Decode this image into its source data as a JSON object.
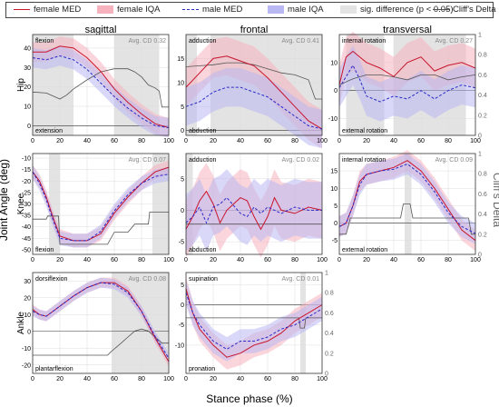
{
  "colors": {
    "female": "#c8142d",
    "female_band": "#f6b3bd",
    "male": "#2929c8",
    "male_band": "#b9b8f2",
    "sig": "#e3e3e3",
    "cliff": "#555555"
  },
  "legend": [
    {
      "label": "female MED",
      "kind": "line-female"
    },
    {
      "label": "female IQA",
      "kind": "band-female"
    },
    {
      "label": "male MED",
      "kind": "line-male"
    },
    {
      "label": "male IQA",
      "kind": "band-male"
    },
    {
      "label": "sig. difference (p < 0.05)",
      "kind": "band-sig"
    },
    {
      "label": "Cliff's Delta",
      "kind": "line-cliff"
    }
  ],
  "figure": {
    "columns": [
      "sagittal",
      "frontal",
      "transversal"
    ],
    "rows": [
      "Hip",
      "Knee",
      "Ankle"
    ],
    "ylabel": "Joint Angle (deg)",
    "xlabel": "Stance phase (%)",
    "y2label": "Cliff's Delta"
  },
  "chart_data": [
    {
      "type": "line",
      "row": 0,
      "col": 0,
      "x_ticks": [
        0,
        20,
        40,
        60,
        80,
        100
      ],
      "y_ticks": [
        0,
        10,
        20,
        30,
        40
      ],
      "ylim": [
        -5,
        47
      ],
      "y2_ticks": [
        0,
        0.2,
        0.4,
        0.6,
        0.8,
        1
      ],
      "avg_cd": "Avg. CD 0.32",
      "label_top": "flexion",
      "label_bottom": "extension",
      "female": {
        "x": [
          0,
          10,
          20,
          30,
          40,
          50,
          60,
          70,
          80,
          90,
          100
        ],
        "y": [
          38,
          38,
          41,
          40,
          35,
          28,
          19,
          12,
          6,
          1,
          -1
        ]
      },
      "male": {
        "x": [
          0,
          10,
          20,
          30,
          40,
          50,
          60,
          70,
          80,
          90,
          100
        ],
        "y": [
          35,
          34,
          36,
          34,
          29,
          22,
          15,
          9,
          4,
          0,
          -1
        ]
      },
      "band_width": 5,
      "sig": [
        [
          0,
          30
        ],
        [
          60,
          93
        ]
      ],
      "cliff": {
        "x": [
          0,
          10,
          20,
          25,
          30,
          40,
          50,
          60,
          70,
          75,
          80,
          85,
          90,
          93,
          95,
          100
        ],
        "y": [
          0.43,
          0.42,
          0.36,
          0.4,
          0.46,
          0.55,
          0.63,
          0.66,
          0.66,
          0.63,
          0.58,
          0.5,
          0.47,
          0.44,
          0.28,
          0.28
        ]
      }
    },
    {
      "type": "line",
      "row": 0,
      "col": 1,
      "x_ticks": [
        0,
        20,
        40,
        60,
        80,
        100
      ],
      "y_ticks": [
        0,
        5,
        10,
        15
      ],
      "ylim": [
        -1,
        20
      ],
      "y2_ticks": [
        0,
        0.2,
        0.4,
        0.6,
        0.8,
        1
      ],
      "avg_cd": "Avg. CD 0.41",
      "label_top": "adduction",
      "label_bottom": "abduction",
      "female": {
        "x": [
          0,
          10,
          20,
          30,
          40,
          50,
          60,
          70,
          80,
          90,
          100
        ],
        "y": [
          9,
          12,
          15,
          15.5,
          14.5,
          13.5,
          11,
          8,
          5,
          2,
          0.3
        ]
      },
      "male": {
        "x": [
          0,
          10,
          20,
          30,
          40,
          50,
          60,
          70,
          80,
          90,
          100
        ],
        "y": [
          5,
          6,
          8,
          9,
          9,
          8,
          7,
          5,
          3,
          1,
          0.3
        ]
      },
      "band_width": 4,
      "sig": [
        [
          0,
          8
        ],
        [
          18,
          100
        ]
      ],
      "cliff": {
        "x": [
          0,
          10,
          20,
          30,
          40,
          50,
          60,
          70,
          80,
          90,
          95,
          100
        ],
        "y": [
          0.68,
          0.69,
          0.7,
          0.72,
          0.72,
          0.7,
          0.66,
          0.62,
          0.6,
          0.55,
          0.36,
          0.36
        ]
      }
    },
    {
      "type": "line",
      "row": 0,
      "col": 2,
      "x_ticks": [
        0,
        20,
        40,
        60,
        80,
        100
      ],
      "y_ticks": [
        -10,
        0,
        10
      ],
      "ylim": [
        -16,
        20
      ],
      "y2_ticks": [
        0,
        0.2,
        0.4,
        0.6,
        0.8,
        1
      ],
      "avg_cd": "Avg. CD 0.27",
      "label_top": "internal rotation",
      "label_bottom": "external rotation",
      "female": {
        "x": [
          0,
          5,
          10,
          15,
          20,
          30,
          40,
          50,
          60,
          70,
          80,
          90,
          100
        ],
        "y": [
          2,
          12,
          14,
          12,
          10,
          8,
          5,
          10,
          12,
          7,
          9,
          10,
          8
        ]
      },
      "male": {
        "x": [
          0,
          5,
          10,
          15,
          20,
          30,
          40,
          50,
          60,
          70,
          80,
          90,
          100
        ],
        "y": [
          1,
          5,
          9,
          4,
          -2,
          -4,
          -2,
          -3,
          0,
          -3,
          0,
          2,
          1
        ]
      },
      "band_width": 7,
      "sig": [
        [
          5,
          33
        ],
        [
          40,
          93
        ]
      ],
      "cliff": {
        "x": [
          0,
          10,
          20,
          30,
          40,
          50,
          60,
          70,
          80,
          90,
          100
        ],
        "y": [
          0.5,
          0.56,
          0.6,
          0.6,
          0.58,
          0.55,
          0.6,
          0.6,
          0.55,
          0.58,
          0.6
        ]
      }
    },
    {
      "type": "line",
      "row": 1,
      "col": 0,
      "x_ticks": [
        0,
        20,
        40,
        60,
        80,
        100
      ],
      "y_ticks": [
        -50,
        -45,
        -40,
        -35,
        -30,
        -25,
        -20,
        -15,
        -10
      ],
      "ylim": [
        -52,
        -8
      ],
      "y2_ticks": [
        0,
        0.2,
        0.4,
        0.6,
        0.8,
        1
      ],
      "avg_cd": "Avg. CD 0.07",
      "label_top": "",
      "label_bottom": "flexion",
      "female": {
        "x": [
          0,
          5,
          10,
          15,
          20,
          30,
          40,
          50,
          60,
          70,
          80,
          90,
          100
        ],
        "y": [
          -16,
          -20,
          -27,
          -36,
          -44,
          -46,
          -46,
          -43,
          -34,
          -27,
          -21,
          -16,
          -14
        ]
      },
      "male": {
        "x": [
          0,
          5,
          10,
          15,
          20,
          30,
          40,
          50,
          60,
          70,
          80,
          90,
          100
        ],
        "y": [
          -16,
          -21,
          -28,
          -37,
          -45,
          -46,
          -46,
          -42,
          -33,
          -26,
          -21,
          -18,
          -17
        ]
      },
      "band_width": 3,
      "sig": [
        [
          12,
          20
        ],
        [
          88,
          100
        ]
      ],
      "cliff": {
        "x": [
          0,
          10,
          11,
          19,
          20,
          55,
          60,
          70,
          75,
          85,
          86,
          98,
          100
        ],
        "y": [
          0.35,
          0.35,
          0.38,
          0.38,
          0.1,
          0.1,
          0.22,
          0.22,
          0.3,
          0.3,
          0.42,
          0.42,
          0.42
        ]
      }
    },
    {
      "type": "line",
      "row": 1,
      "col": 1,
      "x_ticks": [
        0,
        20,
        40,
        60,
        80,
        100
      ],
      "y_ticks": [
        -5,
        0,
        5
      ],
      "ylim": [
        -7,
        9
      ],
      "y2_ticks": [
        0,
        0.2,
        0.4,
        0.6,
        0.8,
        1
      ],
      "avg_cd": "Avg. CD 0.02",
      "label_top": "adduction",
      "label_bottom": "abduction",
      "female": {
        "x": [
          0,
          5,
          10,
          15,
          20,
          25,
          30,
          40,
          45,
          50,
          55,
          60,
          65,
          70,
          80,
          90,
          100
        ],
        "y": [
          -3,
          -1,
          1.5,
          3,
          1,
          -2,
          0,
          2,
          1.5,
          -1,
          -3,
          -1,
          2,
          0,
          -0.5,
          0.5,
          0
        ]
      },
      "male": {
        "x": [
          0,
          5,
          10,
          15,
          20,
          25,
          30,
          40,
          45,
          50,
          55,
          60,
          65,
          70,
          80,
          90,
          100
        ],
        "y": [
          -2,
          -1,
          0.5,
          -2,
          0.5,
          1,
          2,
          -0.5,
          -1,
          0.5,
          -0.5,
          0.5,
          0,
          -0.5,
          0.5,
          0,
          0
        ]
      },
      "band_width": 4.5,
      "sig": [
        [
          0,
          5
        ]
      ],
      "cliff": {
        "x": [
          0,
          100
        ],
        "y": [
          0.3,
          0.3
        ]
      }
    },
    {
      "type": "line",
      "row": 1,
      "col": 2,
      "x_ticks": [
        0,
        20,
        40,
        60,
        80,
        100
      ],
      "y_ticks": [
        -5,
        0,
        5,
        10,
        15
      ],
      "ylim": [
        -9,
        20
      ],
      "y2_ticks": [
        0,
        0.2,
        0.4,
        0.6,
        0.8,
        1
      ],
      "avg_cd": "Avg. CD 0.09",
      "label_top": "internal rotation",
      "label_bottom": "external rotation",
      "female": {
        "x": [
          0,
          5,
          10,
          15,
          20,
          30,
          40,
          50,
          60,
          70,
          80,
          90,
          100
        ],
        "y": [
          -1,
          0,
          5,
          12,
          14,
          15,
          16,
          18,
          15,
          10,
          4,
          -2,
          -5
        ]
      },
      "male": {
        "x": [
          0,
          5,
          10,
          15,
          20,
          30,
          40,
          50,
          60,
          70,
          80,
          90,
          100
        ],
        "y": [
          -1,
          0,
          5,
          11,
          14,
          15,
          15.5,
          17,
          14,
          9,
          3,
          -1,
          -3
        ]
      },
      "band_width": 3,
      "sig": [
        [
          48,
          53
        ]
      ],
      "cliff": {
        "x": [
          0,
          5,
          7,
          8,
          45,
          47,
          52,
          54,
          95,
          97,
          100
        ],
        "y": [
          0.2,
          0.2,
          0.3,
          0.36,
          0.36,
          0.5,
          0.5,
          0.36,
          0.36,
          0.2,
          0.2
        ]
      }
    },
    {
      "type": "line",
      "row": 2,
      "col": 0,
      "x_ticks": [
        0,
        20,
        40,
        60,
        80,
        100
      ],
      "y_ticks": [
        -20,
        -10,
        0,
        10,
        20,
        30
      ],
      "ylim": [
        -25,
        35
      ],
      "y2_ticks": [
        0,
        0.2,
        0.4,
        0.6,
        0.8,
        1
      ],
      "avg_cd": "Avg. CD 0.08",
      "label_top": "dorsiflexion",
      "label_bottom": "plantarflexion",
      "female": {
        "x": [
          0,
          5,
          10,
          20,
          30,
          40,
          50,
          60,
          70,
          80,
          90,
          100
        ],
        "y": [
          13,
          10,
          9,
          15,
          21,
          26,
          29,
          29,
          24,
          12,
          -4,
          -18
        ]
      },
      "male": {
        "x": [
          0,
          5,
          10,
          20,
          30,
          40,
          50,
          60,
          70,
          80,
          90,
          100
        ],
        "y": [
          12,
          10,
          9,
          15,
          21,
          26,
          29,
          28,
          23,
          12,
          -3,
          -16
        ]
      },
      "band_width": 3,
      "sig": [
        [
          58,
          100
        ]
      ],
      "cliff": {
        "x": [
          0,
          55,
          58,
          65,
          70,
          75,
          80,
          85,
          90,
          95,
          100
        ],
        "y": [
          0.18,
          0.18,
          0.22,
          0.3,
          0.36,
          0.42,
          0.44,
          0.42,
          0.36,
          0.3,
          0.3
        ]
      }
    },
    {
      "type": "line",
      "row": 2,
      "col": 1,
      "x_ticks": [
        0,
        20,
        40,
        60,
        80,
        100
      ],
      "y_ticks": [
        -10,
        -5,
        0,
        5
      ],
      "ylim": [
        -17,
        8
      ],
      "y2_ticks": [
        0,
        0.2,
        0.4,
        0.6,
        0.8,
        1
      ],
      "avg_cd": "Avg. CD 0.01",
      "label_top": "supination",
      "label_bottom": "pronation",
      "female": {
        "x": [
          0,
          5,
          10,
          20,
          30,
          40,
          50,
          60,
          70,
          80,
          90,
          100
        ],
        "y": [
          4,
          -2,
          -6,
          -10,
          -13,
          -12,
          -10,
          -9,
          -7,
          -4,
          -2,
          0
        ]
      },
      "male": {
        "x": [
          0,
          5,
          10,
          20,
          30,
          40,
          50,
          60,
          70,
          80,
          90,
          100
        ],
        "y": [
          3,
          -2,
          -5,
          -9,
          -11,
          -9,
          -9,
          -8,
          -6,
          -5,
          -3,
          -1
        ]
      },
      "band_width": 3,
      "sig": [
        [
          84,
          88
        ]
      ],
      "cliff": {
        "x": [
          0,
          83,
          84,
          87,
          88,
          100
        ],
        "y": [
          0.55,
          0.55,
          0.45,
          0.45,
          0.55,
          0.55
        ]
      }
    }
  ]
}
